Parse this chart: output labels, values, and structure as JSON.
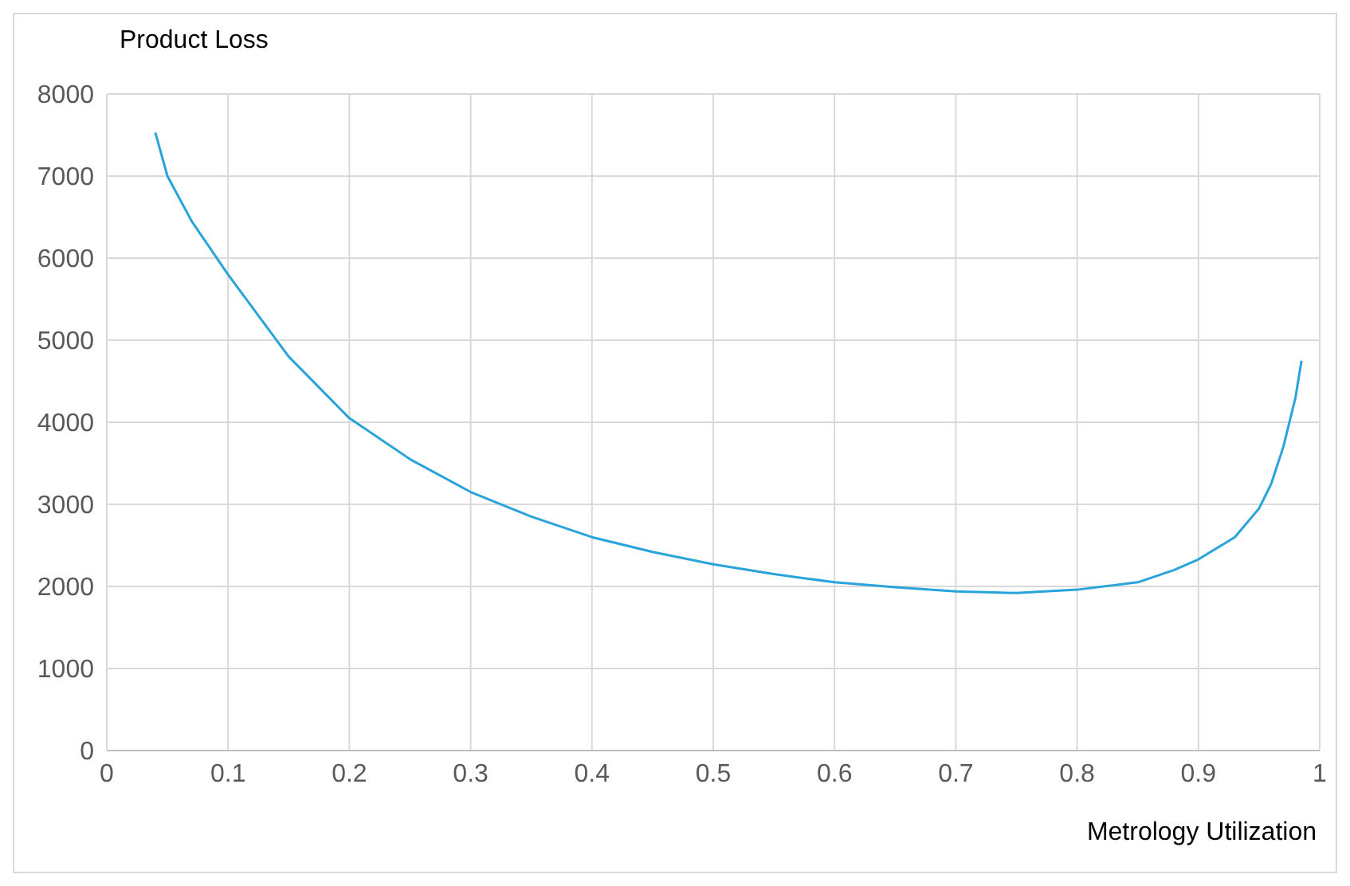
{
  "chart_data": {
    "type": "line",
    "ylabel": "Product Loss",
    "xlabel": "Metrology Utilization",
    "x": [
      0.04,
      0.05,
      0.07,
      0.1,
      0.15,
      0.2,
      0.25,
      0.3,
      0.35,
      0.4,
      0.45,
      0.5,
      0.55,
      0.6,
      0.65,
      0.7,
      0.75,
      0.8,
      0.85,
      0.88,
      0.9,
      0.93,
      0.95,
      0.96,
      0.97,
      0.98,
      0.985
    ],
    "series": [
      {
        "color": "#29a3dc",
        "values": [
          7530,
          7000,
          6450,
          5800,
          4800,
          4050,
          3550,
          3150,
          2850,
          2600,
          2420,
          2270,
          2150,
          2050,
          1990,
          1940,
          1920,
          1960,
          2050,
          2200,
          2330,
          2600,
          2950,
          3250,
          3700,
          4300,
          4750
        ]
      }
    ],
    "xlim": [
      0,
      1
    ],
    "xticks": [
      0,
      0.1,
      0.2,
      0.3,
      0.4,
      0.5,
      0.6,
      0.7,
      0.8,
      0.9,
      1
    ],
    "ylim": [
      0,
      8000
    ],
    "yticks": [
      0,
      1000,
      2000,
      3000,
      4000,
      5000,
      6000,
      7000,
      8000
    ],
    "grid": true,
    "marker": "none",
    "line_style": "solid",
    "legend": false
  }
}
